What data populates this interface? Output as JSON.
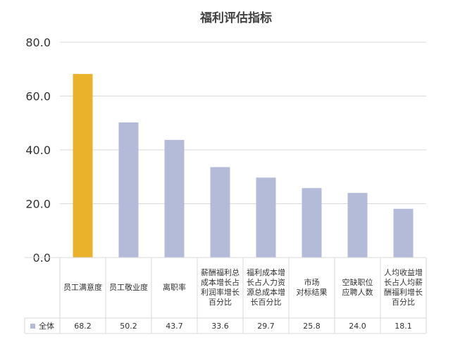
{
  "chart_data": {
    "type": "bar",
    "title": "福利评估指标",
    "categories": [
      "员工满意度",
      "员工敬业度",
      "离职率",
      "薪酬福利总\n成本增长占\n利润率增长\n百分比",
      "福利成本增\n长占人力资\n源总成本增\n长百分比",
      "市场\n对标结果",
      "空缺职位\n应聘人数",
      "人均收益增\n长占人均薪\n酬福利增长\n百分比"
    ],
    "series": [
      {
        "name": "全体",
        "values": [
          68.2,
          50.2,
          43.7,
          33.6,
          29.7,
          25.8,
          24.0,
          18.1
        ],
        "value_labels": [
          "68.2",
          "50.2",
          "43.7",
          "33.6",
          "29.7",
          "25.8",
          "24.0",
          "18.1"
        ]
      }
    ],
    "highlight_index": 0,
    "ylim": [
      0,
      80
    ],
    "yticks": [
      "0.0",
      "20.0",
      "40.0",
      "60.0",
      "80.0"
    ],
    "ytick_values": [
      0,
      20,
      40,
      60,
      80
    ],
    "xlabel": "",
    "ylabel": "",
    "grid": true,
    "legend_position": "data-table-left"
  },
  "colors": {
    "bar": "#b4bbd9",
    "highlight": "#e9b22a",
    "grid": "#d9d9d9",
    "table_border": "#d9d9d9",
    "text": "#333333",
    "title": "#404040"
  }
}
